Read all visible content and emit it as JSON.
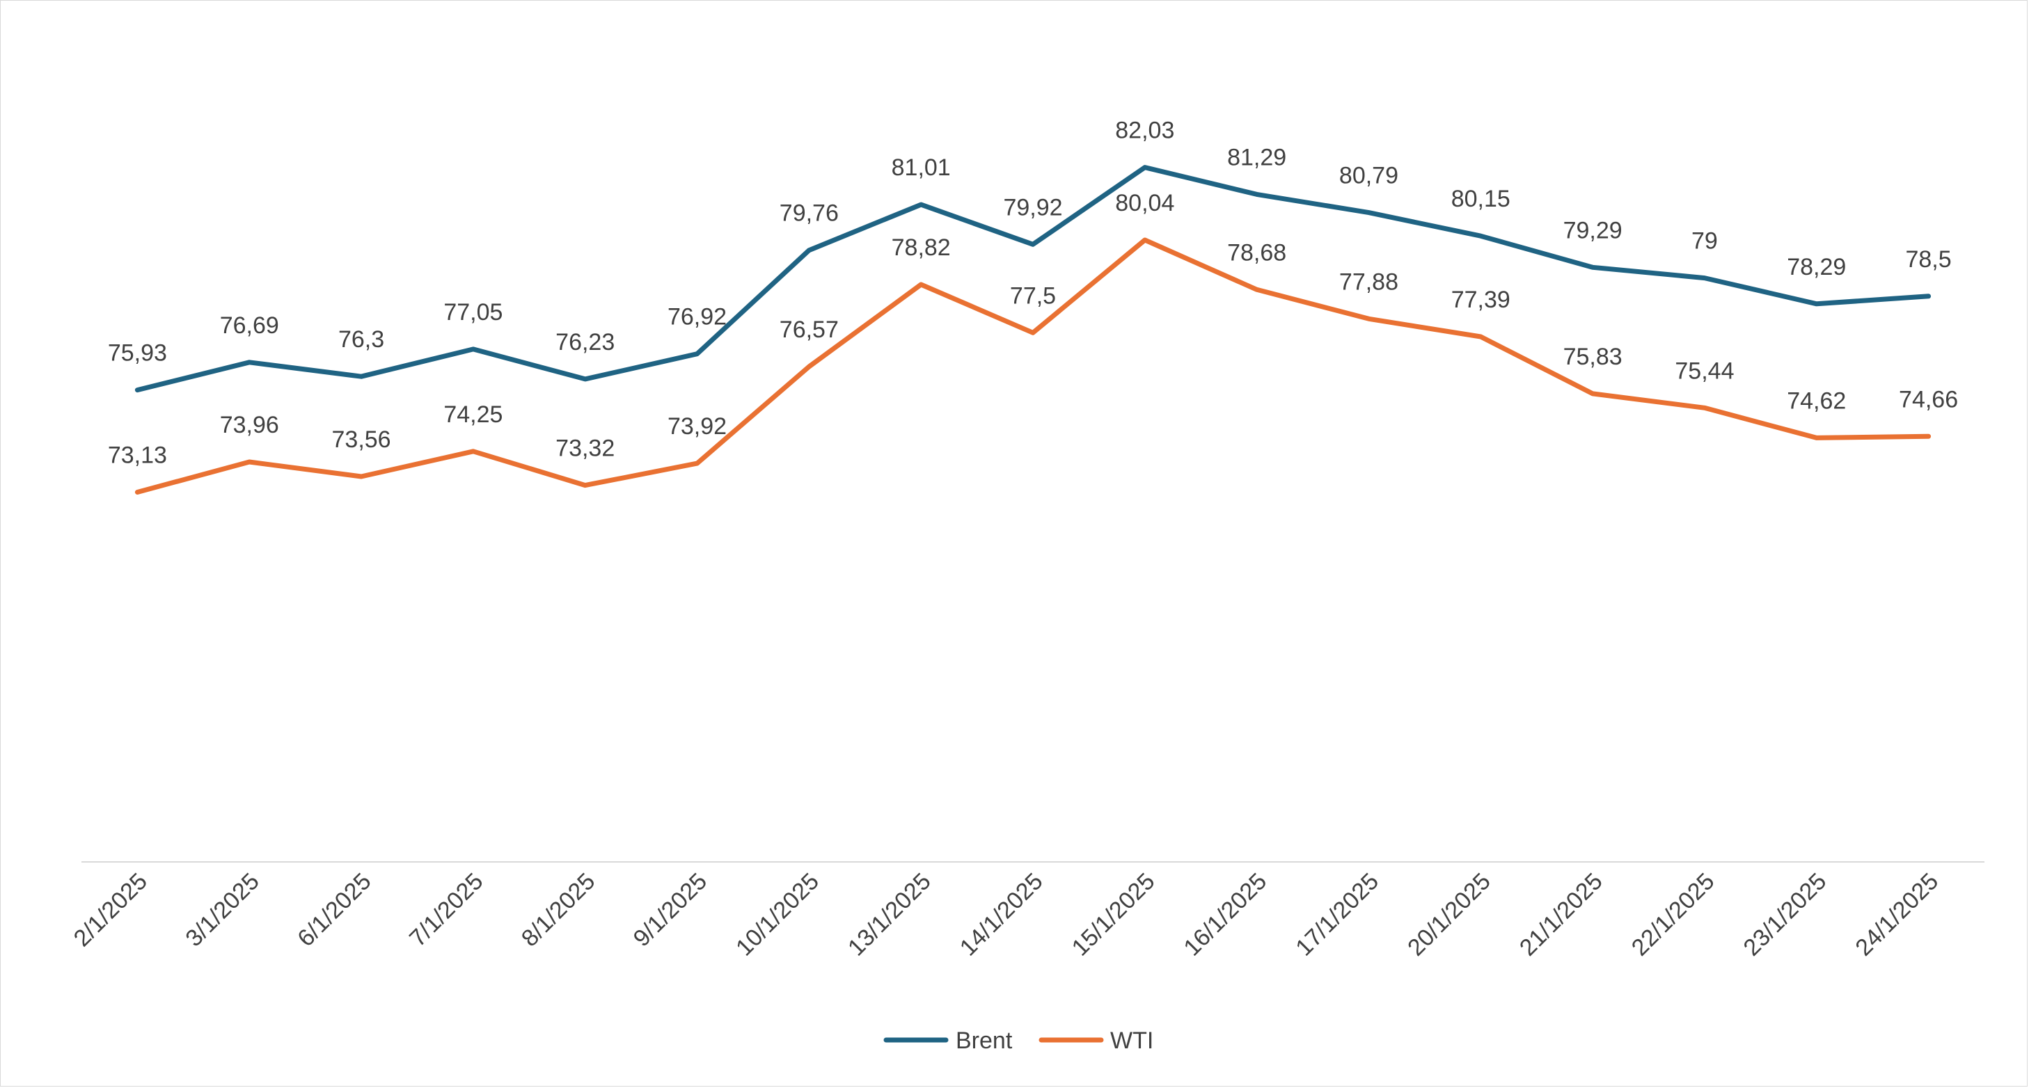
{
  "chart_data": {
    "type": "line",
    "title": "",
    "xlabel": "",
    "ylabel": "",
    "categories": [
      "2/1/2025",
      "3/1/2025",
      "6/1/2025",
      "7/1/2025",
      "8/1/2025",
      "9/1/2025",
      "10/1/2025",
      "13/1/2025",
      "14/1/2025",
      "15/1/2025",
      "16/1/2025",
      "17/1/2025",
      "20/1/2025",
      "21/1/2025",
      "22/1/2025",
      "23/1/2025",
      "24/1/2025"
    ],
    "series": [
      {
        "name": "Brent",
        "color": "#1f6383",
        "values": [
          75.93,
          76.69,
          76.3,
          77.05,
          76.23,
          76.92,
          79.76,
          81.01,
          79.92,
          82.03,
          81.29,
          80.79,
          80.15,
          79.29,
          79,
          78.29,
          78.5
        ],
        "labels": [
          "75,93",
          "76,69",
          "76,3",
          "77,05",
          "76,23",
          "76,92",
          "79,76",
          "81,01",
          "79,92",
          "82,03",
          "81,29",
          "80,79",
          "80,15",
          "79,29",
          "79",
          "78,29",
          "78,5"
        ]
      },
      {
        "name": "WTI",
        "color": "#e97132",
        "values": [
          73.13,
          73.96,
          73.56,
          74.25,
          73.32,
          73.92,
          76.57,
          78.82,
          77.5,
          80.04,
          78.68,
          77.88,
          77.39,
          75.83,
          75.44,
          74.62,
          74.66
        ],
        "labels": [
          "73,13",
          "73,96",
          "73,56",
          "74,25",
          "73,32",
          "73,92",
          "76,57",
          "78,82",
          "77,5",
          "80,04",
          "78,68",
          "77,88",
          "77,39",
          "75,83",
          "75,44",
          "74,62",
          "74,66"
        ]
      }
    ],
    "ylim": [
      63,
      84.5
    ],
    "grid": false,
    "legend_position": "bottom"
  }
}
